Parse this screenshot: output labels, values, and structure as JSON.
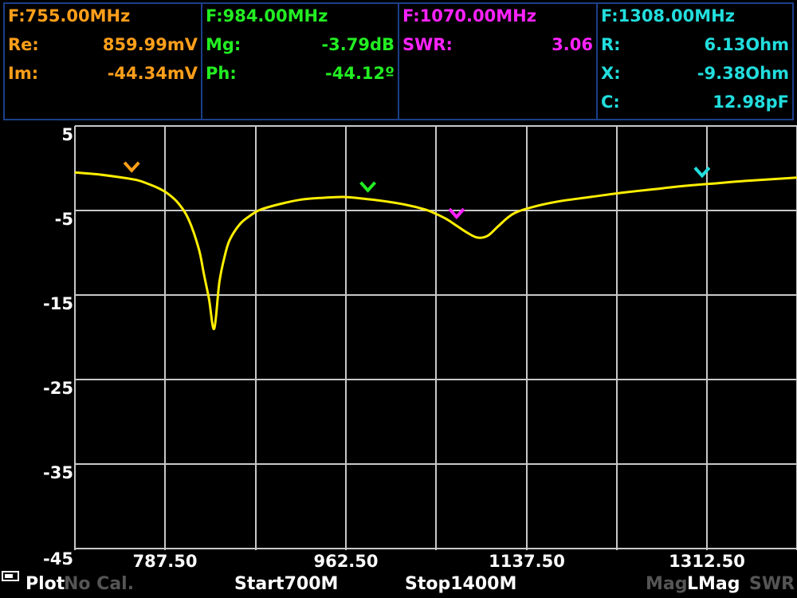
{
  "markers": [
    {
      "color": "#ff9f1a",
      "freq": "F:755.00MHz",
      "rows": [
        {
          "label": "Re:",
          "value": "859.99mV"
        },
        {
          "label": "Im:",
          "value": "-44.34mV"
        }
      ]
    },
    {
      "color": "#22ee22",
      "freq": "F:984.00MHz",
      "rows": [
        {
          "label": "Mg:",
          "value": "-3.79dB"
        },
        {
          "label": "Ph:",
          "value": "-44.12º"
        }
      ]
    },
    {
      "color": "#ff22ff",
      "freq": "F:1070.00MHz",
      "rows": [
        {
          "label": "SWR:",
          "value": "3.06"
        }
      ]
    },
    {
      "color": "#22dddd",
      "freq": "F:1308.00MHz",
      "rows": [
        {
          "label": "R:",
          "value": "6.13Ohm"
        },
        {
          "label": "X:",
          "value": "-9.38Ohm"
        },
        {
          "label": "C:",
          "value": "12.98pF"
        }
      ]
    }
  ],
  "footer": {
    "plot": "Plot",
    "cal": "No Cal.",
    "start": "Start700M",
    "stop": "Stop1400M",
    "mag": "Mag",
    "lmag": "LMag",
    "swr": "SWR"
  },
  "chart_data": {
    "type": "line",
    "y_tick_labels": [
      "5",
      "-5",
      "-15",
      "-25",
      "-35",
      "-45"
    ],
    "x_tick_labels": [
      "787.50",
      "962.50",
      "1137.50",
      "1312.50"
    ],
    "xlim": [
      700,
      1400
    ],
    "ylim": [
      -45,
      5
    ],
    "grid": true,
    "trace_color": "#ffee00",
    "series": [
      {
        "x": [
          700,
          720,
          740,
          760,
          770,
          780,
          790,
          800,
          810,
          820,
          825,
          830,
          835,
          840,
          845,
          850,
          860,
          870,
          880,
          900,
          920,
          940,
          960,
          980,
          1000,
          1020,
          1040,
          1050,
          1060,
          1070,
          1080,
          1090,
          1100,
          1110,
          1120,
          1130,
          1150,
          1170,
          1200,
          1230,
          1260,
          1290,
          1320,
          1350,
          1400
        ],
        "y": [
          -0.5,
          -0.7,
          -1.0,
          -1.4,
          -1.8,
          -2.3,
          -3.0,
          -4.1,
          -6.0,
          -9.5,
          -12.5,
          -15.5,
          -19.0,
          -13.5,
          -10.5,
          -8.5,
          -6.6,
          -5.6,
          -4.9,
          -4.2,
          -3.7,
          -3.5,
          -3.4,
          -3.6,
          -3.9,
          -4.3,
          -4.9,
          -5.4,
          -6.0,
          -6.8,
          -7.6,
          -8.2,
          -8.0,
          -6.9,
          -5.8,
          -5.1,
          -4.4,
          -3.9,
          -3.4,
          -2.9,
          -2.5,
          -2.1,
          -1.8,
          -1.5,
          -1.1
        ]
      }
    ],
    "markers": [
      {
        "x": 755,
        "color": "#ff9f1a"
      },
      {
        "x": 984,
        "color": "#22ee22"
      },
      {
        "x": 1070,
        "color": "#ff22ff"
      },
      {
        "x": 1308,
        "color": "#22dddd"
      }
    ]
  }
}
